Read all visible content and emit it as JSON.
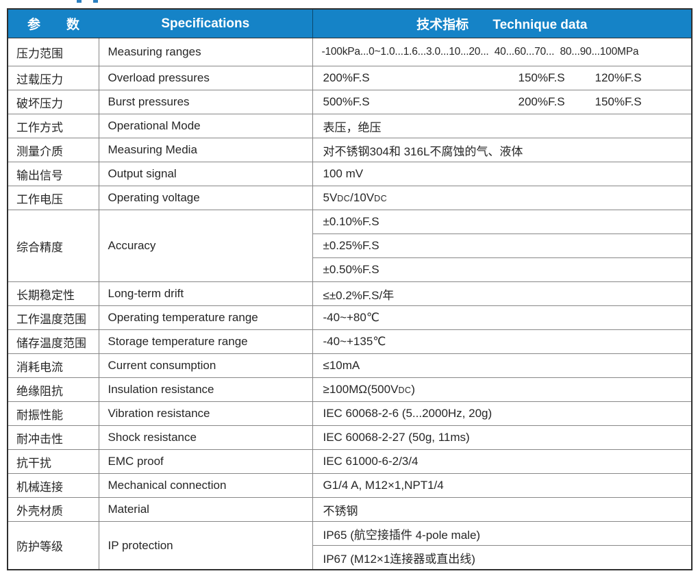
{
  "colors": {
    "header_bg": "#1583c7",
    "header_text": "#ffffff",
    "body_text": "#262626",
    "outer_border": "#2e2e2e",
    "grid_line": "#878787",
    "cutoff_text_remnant": "#2a7fc0"
  },
  "header": {
    "param_cn_char1": "参",
    "param_cn_char2": "数",
    "specifications": "Specifications",
    "technique_cn": "技术指标",
    "technique_en": "Technique data"
  },
  "rows": [
    {
      "cn": "压力范围",
      "en": "Measuring ranges",
      "value": "-100kPa...0~1.0...1.6...3.0...10...20...  40...60...70...  80...90...100MPa"
    },
    {
      "cn": "过载压力",
      "en": "Overload pressures",
      "v1": "200%F.S",
      "v2": "150%F.S",
      "v3": "120%F.S"
    },
    {
      "cn": "破坏压力",
      "en": "Burst pressures",
      "v1": "500%F.S",
      "v2": "200%F.S",
      "v3": "150%F.S"
    },
    {
      "cn": "工作方式",
      "en": "Operational Mode",
      "value": "表压，绝压"
    },
    {
      "cn": "测量介质",
      "en": "Measuring Media",
      "value": "对不锈钢304和 316L不腐蚀的气、液体"
    },
    {
      "cn": "输出信号",
      "en": "Output signal",
      "value": "100 mV"
    },
    {
      "cn": "工作电压",
      "en": "Operating voltage",
      "parts": {
        "a": "5V",
        "b": "DC",
        "c": "/10V",
        "d": "DC"
      }
    },
    {
      "cn": "综合精度",
      "en": "Accuracy",
      "values": [
        "±0.10%F.S",
        "±0.25%F.S",
        "±0.50%F.S"
      ]
    },
    {
      "cn": "长期稳定性",
      "en": "Long-term drift",
      "value": "≤±0.2%F.S/年"
    },
    {
      "cn": "工作温度范围",
      "en": "Operating temperature range",
      "value": "-40~+80℃"
    },
    {
      "cn": "储存温度范围",
      "en": "Storage temperature range",
      "value": "-40~+135℃"
    },
    {
      "cn": "消耗电流",
      "en": "Current consumption",
      "value": "≤10mA"
    },
    {
      "cn": "绝缘阻抗",
      "en": "Insulation resistance",
      "parts": {
        "a": "≥100MΩ(500V",
        "b": "DC",
        "c": ")"
      }
    },
    {
      "cn": "耐振性能",
      "en": "Vibration resistance",
      "value": "IEC 60068-2-6 (5...2000Hz, 20g)"
    },
    {
      "cn": "耐冲击性",
      "en": "Shock resistance",
      "value": "IEC 60068-2-27 (50g, 11ms)"
    },
    {
      "cn": "抗干扰",
      "en": "EMC proof",
      "value": "IEC 61000-6-2/3/4"
    },
    {
      "cn": "机械连接",
      "en": "Mechanical connection",
      "value": "G1/4 A, M12×1,NPT1/4"
    },
    {
      "cn": "外壳材质",
      "en": "Material",
      "value": "不锈钢"
    },
    {
      "cn": "防护等级",
      "en": "IP protection",
      "values": [
        "IP65 (航空接插件 4-pole male)",
        "IP67 (M12×1连接器或直出线)"
      ]
    }
  ]
}
